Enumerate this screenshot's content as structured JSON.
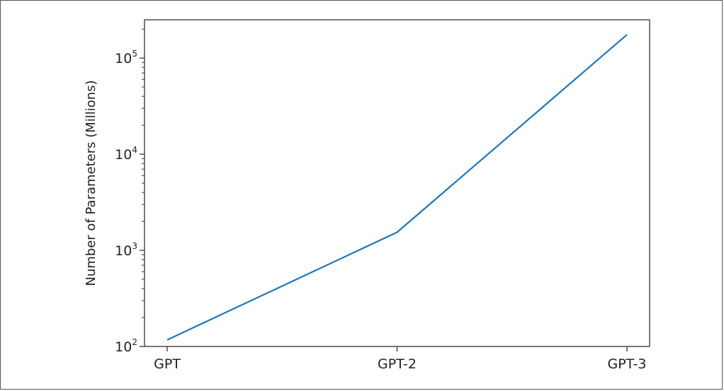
{
  "chart_data": {
    "type": "line",
    "title": "",
    "xlabel": "",
    "ylabel": "Number of Parameters (Millions)",
    "yscale": "log",
    "ylim": [
      100,
      250000
    ],
    "categories": [
      "GPT",
      "GPT-2",
      "GPT-3"
    ],
    "series": [
      {
        "values": [
          117,
          1542,
          175000
        ],
        "color": "#1f77b4"
      }
    ],
    "yticks": [
      {
        "value": 100,
        "base": "10",
        "exp": "2"
      },
      {
        "value": 1000,
        "base": "10",
        "exp": "3"
      },
      {
        "value": 10000,
        "base": "10",
        "exp": "4"
      },
      {
        "value": 100000,
        "base": "10",
        "exp": "5"
      }
    ],
    "grid": false,
    "legend": "none"
  }
}
